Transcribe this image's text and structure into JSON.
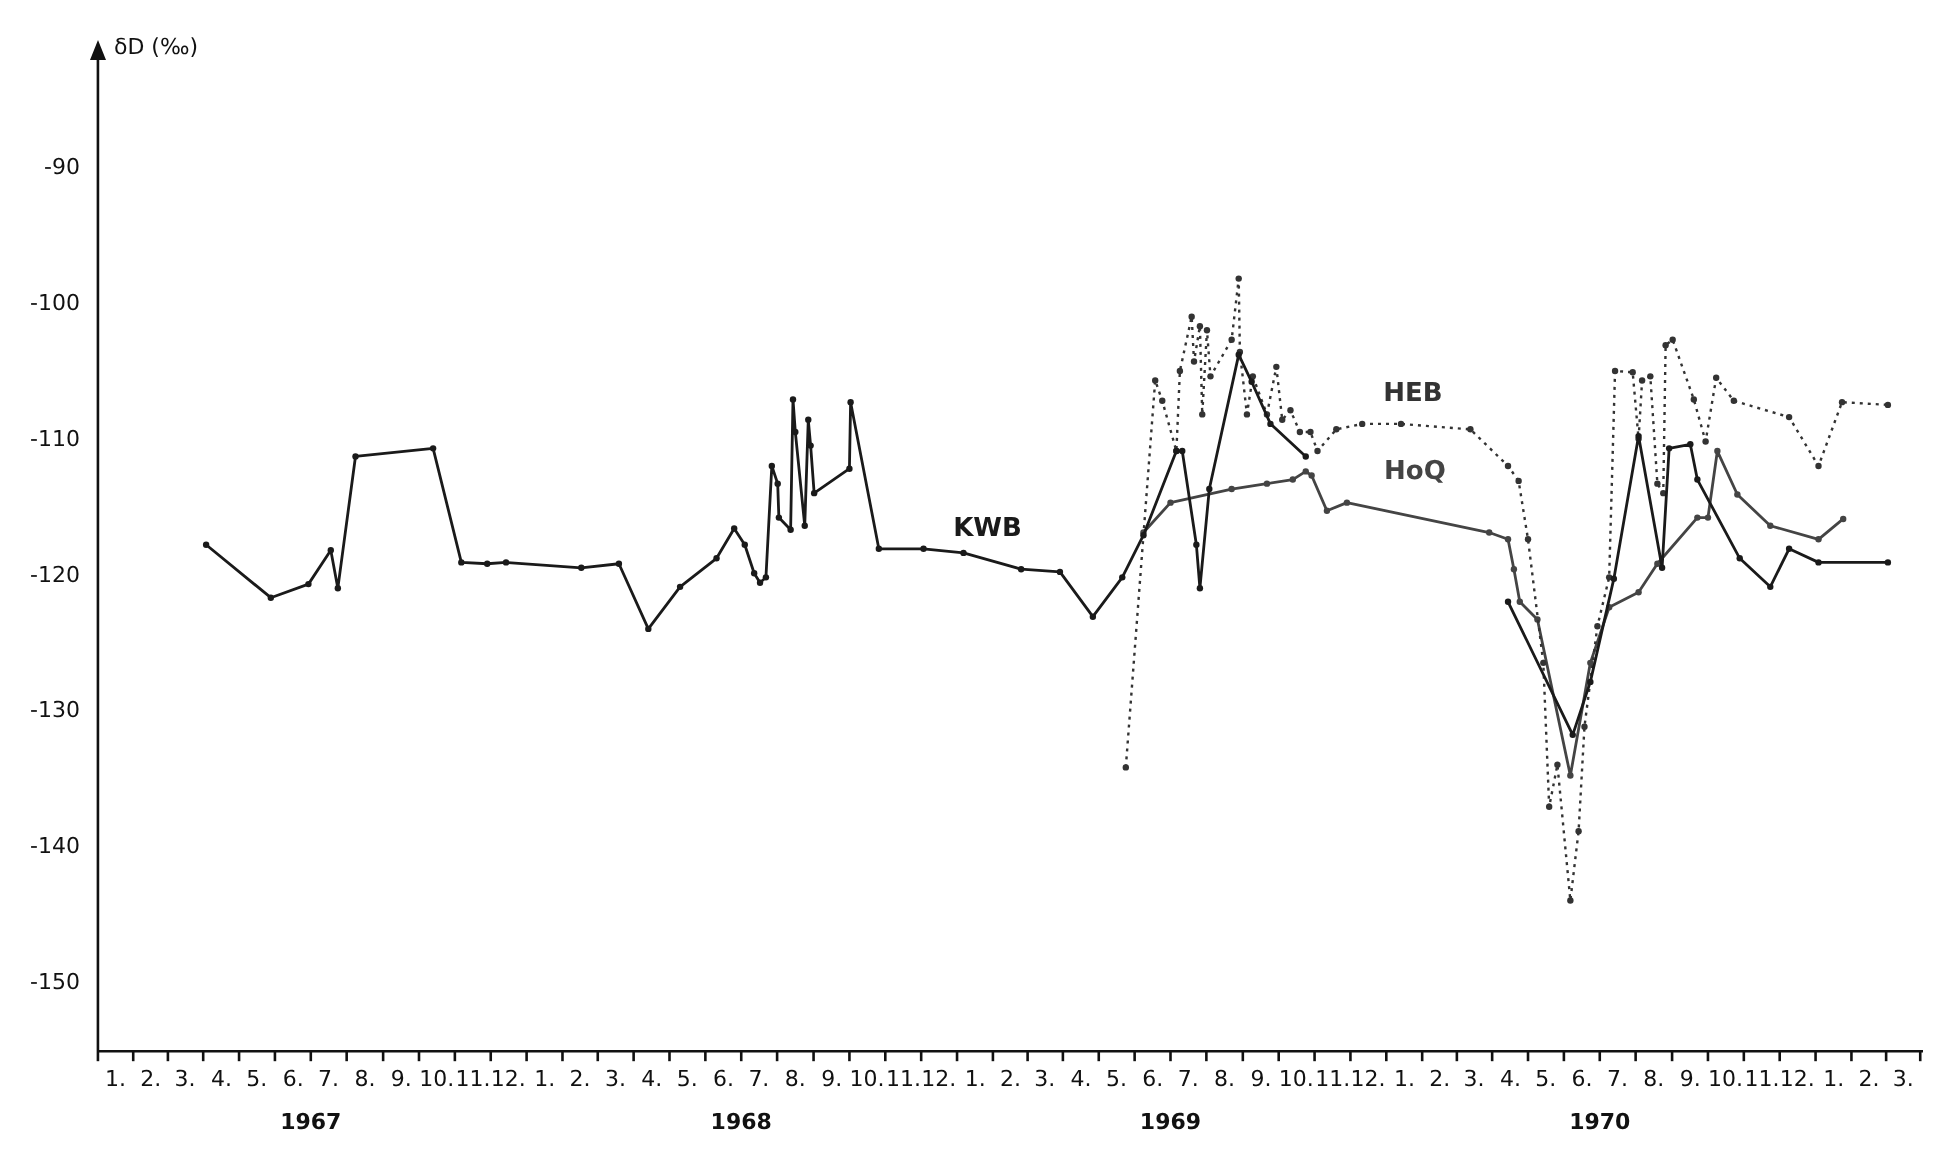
{
  "chart_data": {
    "type": "line",
    "ylabel": "δD (‰)",
    "legend": false,
    "grid": false,
    "marker": "circle",
    "xlim": [
      "1967-01-01",
      "1971-04-01"
    ],
    "ylim": [
      -155,
      -82
    ],
    "yticks": [
      -90,
      -100,
      -110,
      -120,
      -130,
      -140,
      -150
    ],
    "xticks": [
      {
        "value": "1967-01-16",
        "label": "1."
      },
      {
        "value": "1967-02-15",
        "label": "2."
      },
      {
        "value": "1967-03-16",
        "label": "3."
      },
      {
        "value": "1967-04-16",
        "label": "4."
      },
      {
        "value": "1967-05-16",
        "label": "5."
      },
      {
        "value": "1967-06-16",
        "label": "6."
      },
      {
        "value": "1967-07-16",
        "label": "7."
      },
      {
        "value": "1967-08-16",
        "label": "8."
      },
      {
        "value": "1967-09-16",
        "label": "9."
      },
      {
        "value": "1967-10-16",
        "label": "10."
      },
      {
        "value": "1967-11-16",
        "label": "11."
      },
      {
        "value": "1967-12-16",
        "label": "12."
      },
      {
        "value": "1968-01-16",
        "label": "1."
      },
      {
        "value": "1968-02-15",
        "label": "2."
      },
      {
        "value": "1968-03-16",
        "label": "3."
      },
      {
        "value": "1968-04-16",
        "label": "4."
      },
      {
        "value": "1968-05-16",
        "label": "5."
      },
      {
        "value": "1968-06-16",
        "label": "6."
      },
      {
        "value": "1968-07-16",
        "label": "7."
      },
      {
        "value": "1968-08-16",
        "label": "8."
      },
      {
        "value": "1968-09-16",
        "label": "9."
      },
      {
        "value": "1968-10-16",
        "label": "10."
      },
      {
        "value": "1968-11-16",
        "label": "11."
      },
      {
        "value": "1968-12-16",
        "label": "12."
      },
      {
        "value": "1969-01-16",
        "label": "1."
      },
      {
        "value": "1969-02-15",
        "label": "2."
      },
      {
        "value": "1969-03-16",
        "label": "3."
      },
      {
        "value": "1969-04-16",
        "label": "4."
      },
      {
        "value": "1969-05-16",
        "label": "5."
      },
      {
        "value": "1969-06-16",
        "label": "6."
      },
      {
        "value": "1969-07-16",
        "label": "7."
      },
      {
        "value": "1969-08-16",
        "label": "8."
      },
      {
        "value": "1969-09-16",
        "label": "9."
      },
      {
        "value": "1969-10-16",
        "label": "10."
      },
      {
        "value": "1969-11-16",
        "label": "11."
      },
      {
        "value": "1969-12-16",
        "label": "12."
      },
      {
        "value": "1970-01-16",
        "label": "1."
      },
      {
        "value": "1970-02-15",
        "label": "2."
      },
      {
        "value": "1970-03-16",
        "label": "3."
      },
      {
        "value": "1970-04-16",
        "label": "4."
      },
      {
        "value": "1970-05-16",
        "label": "5."
      },
      {
        "value": "1970-06-16",
        "label": "6."
      },
      {
        "value": "1970-07-16",
        "label": "7."
      },
      {
        "value": "1970-08-16",
        "label": "8."
      },
      {
        "value": "1970-09-16",
        "label": "9."
      },
      {
        "value": "1970-10-16",
        "label": "10."
      },
      {
        "value": "1970-11-16",
        "label": "11."
      },
      {
        "value": "1970-12-16",
        "label": "12."
      },
      {
        "value": "1971-01-16",
        "label": "1."
      },
      {
        "value": "1971-02-15",
        "label": "2."
      },
      {
        "value": "1971-03-16",
        "label": "3."
      }
    ],
    "x2lim": [
      "1967-01-01",
      "1971-04-01"
    ],
    "x2ticks": [
      {
        "value": "1967-07-01",
        "label": "1967"
      },
      {
        "value": "1968-07-01",
        "label": "1968"
      },
      {
        "value": "1969-07-01",
        "label": "1969"
      },
      {
        "value": "1970-07-01",
        "label": "1970"
      }
    ],
    "series": [
      {
        "name": "KWB",
        "color": "#1a1a1a",
        "line_style": "solid",
        "x": [
          "1967-04-03",
          "1967-05-28",
          "1967-06-29",
          "1967-07-18",
          "1967-07-24",
          "1967-08-08",
          "1967-10-13",
          "1967-11-06",
          "1967-11-28",
          "1967-12-14",
          "1968-02-16",
          "1968-03-19",
          "1968-04-13",
          "1968-05-10",
          "1968-06-10",
          "1968-06-25",
          "1968-07-04",
          "1968-07-12",
          "1968-07-17",
          "1968-07-22",
          "1968-07-27",
          "1968-08-01",
          "1968-08-02",
          "1968-08-12",
          "1968-08-14",
          "1968-08-16",
          "1968-08-24",
          "1968-08-27",
          "1968-08-29",
          "1968-09-01",
          "1968-10-01",
          "1968-10-02",
          "1968-10-26",
          "1968-12-03",
          "1969-01-06",
          "1969-02-24",
          "1969-03-29",
          "1969-04-26",
          "1969-05-21",
          "1969-06-08",
          "1969-07-06",
          "1969-07-11",
          "1969-07-23",
          "1969-07-26",
          "1969-08-03",
          "1969-08-28",
          "1969-09-08",
          "1969-09-24",
          "1969-10-24",
          "1970-01-01",
          "1970-04-14",
          "1970-06-08",
          "1970-06-23",
          "1970-07-13",
          "1970-08-03",
          "1970-08-23",
          "1970-08-29",
          "1970-09-16",
          "1970-09-22",
          "1970-10-28",
          "1970-11-23",
          "1970-12-09",
          "1971-01-03",
          "1971-03-03"
        ],
        "values": [
          -117.7,
          -121.6,
          -120.6,
          -118.1,
          -120.9,
          -111.2,
          -110.6,
          -119.0,
          -119.1,
          -119.0,
          -119.4,
          -119.1,
          -123.9,
          -120.8,
          -118.7,
          -116.5,
          -117.7,
          -119.8,
          -120.5,
          -120.1,
          -111.9,
          -113.2,
          -115.7,
          -116.6,
          -107.0,
          -109.4,
          -116.3,
          -108.5,
          -110.4,
          -113.9,
          -112.1,
          -107.2,
          -118.0,
          -118.0,
          -118.3,
          -119.5,
          -119.7,
          -123.0,
          -120.1,
          -117.0,
          -110.8,
          -110.8,
          -117.7,
          -120.9,
          -113.6,
          -103.7,
          -105.7,
          -108.8,
          -111.2,
          null,
          -121.9,
          -131.7,
          -127.8,
          -120.2,
          -109.7,
          -119.4,
          -110.6,
          -110.3,
          -112.9,
          -118.7,
          -120.8,
          -118.0,
          -119.0,
          -119.0
        ]
      },
      {
        "name": "HEB",
        "color": "#333333",
        "line_style": "dotted",
        "x": [
          "1969-05-24",
          "1969-06-18",
          "1969-06-24",
          "1969-07-06",
          "1969-07-09",
          "1969-07-19",
          "1969-07-21",
          "1969-07-26",
          "1969-07-28",
          "1969-08-01",
          "1969-08-04",
          "1969-08-22",
          "1969-08-28",
          "1969-08-29",
          "1969-09-04",
          "1969-09-09",
          "1969-09-21",
          "1969-09-29",
          "1969-10-04",
          "1969-10-11",
          "1969-10-19",
          "1969-10-28",
          "1969-11-03",
          "1969-11-19",
          "1969-12-11",
          "1970-01-13",
          "1970-03-13",
          "1970-04-14",
          "1970-04-23",
          "1970-05-01",
          "1970-05-14",
          "1970-05-19",
          "1970-05-26",
          "1970-06-06",
          "1970-06-13",
          "1970-06-18",
          "1970-06-29",
          "1970-07-09",
          "1970-07-14",
          "1970-07-29",
          "1970-08-03",
          "1970-08-06",
          "1970-08-13",
          "1970-08-19",
          "1970-08-24",
          "1970-08-26",
          "1970-09-01",
          "1970-09-19",
          "1970-09-29",
          "1970-10-08",
          "1970-10-23",
          "1970-12-09",
          "1971-01-03",
          "1971-01-23",
          "1971-03-03"
        ],
        "values": [
          -134.1,
          -105.6,
          -107.1,
          -110.8,
          -104.9,
          -100.9,
          -104.2,
          -101.6,
          -108.1,
          -101.9,
          -105.3,
          -102.6,
          -98.1,
          -103.5,
          -108.1,
          -105.3,
          -108.1,
          -104.6,
          -108.5,
          -107.8,
          -109.4,
          -109.4,
          -110.8,
          -109.2,
          -108.8,
          -108.8,
          -109.2,
          -111.9,
          -113.0,
          -117.3,
          -126.4,
          -137.0,
          -133.9,
          -143.9,
          -138.8,
          -131.1,
          -123.7,
          -120.1,
          -104.9,
          -105.0,
          -109.9,
          -105.6,
          -105.3,
          -113.2,
          -113.9,
          -103.0,
          -102.6,
          -107.0,
          -110.1,
          -105.4,
          -107.1,
          -108.3,
          -111.9,
          -107.2,
          -107.4
        ]
      },
      {
        "name": "HoQ",
        "color": "#444444",
        "line_style": "solid",
        "x": [
          "1969-06-08",
          "1969-07-01",
          "1969-08-22",
          "1969-09-21",
          "1969-10-13",
          "1969-10-24",
          "1969-10-29",
          "1969-11-11",
          "1969-11-28",
          "1970-03-29",
          "1970-04-14",
          "1970-04-19",
          "1970-04-24",
          "1970-05-09",
          "1970-06-06",
          "1970-06-23",
          "1970-07-09",
          "1970-08-03",
          "1970-08-19",
          "1970-09-22",
          "1970-10-01",
          "1970-10-09",
          "1970-10-26",
          "1970-11-23",
          "1971-01-03",
          "1971-01-24"
        ],
        "values": [
          -116.8,
          -114.6,
          -113.6,
          -113.2,
          -112.9,
          -112.3,
          -112.6,
          -115.2,
          -114.6,
          -116.8,
          -117.3,
          -119.5,
          -121.9,
          -123.2,
          -134.7,
          -126.4,
          -122.3,
          -121.2,
          -119.1,
          -115.7,
          -115.7,
          -110.8,
          -114.0,
          -116.3,
          -117.3,
          -115.8
        ]
      }
    ]
  }
}
